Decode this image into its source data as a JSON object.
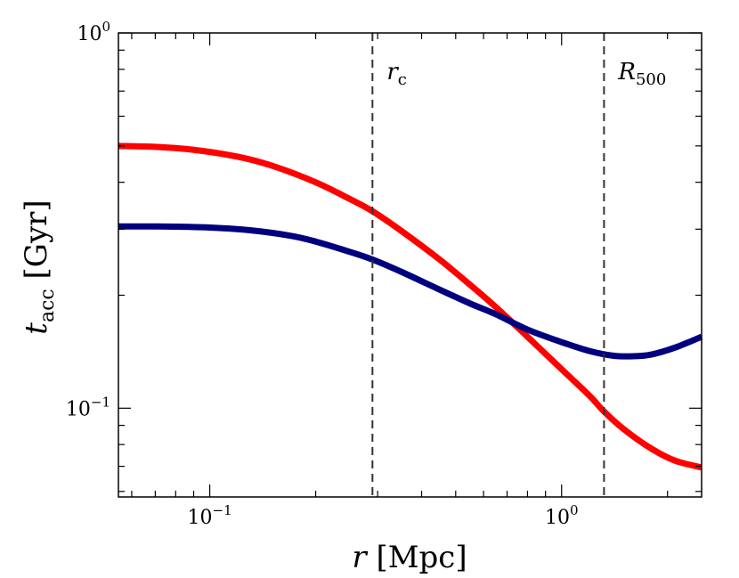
{
  "chart_data": {
    "type": "line",
    "xscale": "log",
    "yscale": "log",
    "xlim": [
      0.055,
      2.5
    ],
    "ylim": [
      0.058,
      1.0
    ],
    "xlabel": {
      "var": "r",
      "unit": " [Mpc]"
    },
    "ylabel": {
      "var": "t",
      "sub": "acc",
      "unit": " [Gyr]"
    },
    "x_ticks": [
      {
        "value": 0.1,
        "base": "10",
        "exp": "−1"
      },
      {
        "value": 1.0,
        "base": "10",
        "exp": "0"
      }
    ],
    "y_ticks": [
      {
        "value": 0.1,
        "base": "10",
        "exp": "−1"
      },
      {
        "value": 1.0,
        "base": "10",
        "exp": "0"
      }
    ],
    "vlines": [
      {
        "x": 0.29,
        "label": "r",
        "sub": "c"
      },
      {
        "x": 1.32,
        "label": "R",
        "sub": "500"
      }
    ],
    "series": [
      {
        "name": "red",
        "color": "#ff0000",
        "x": [
          0.055,
          0.07,
          0.09,
          0.12,
          0.15,
          0.2,
          0.25,
          0.29,
          0.35,
          0.45,
          0.55,
          0.65,
          0.8,
          1.0,
          1.2,
          1.32,
          1.5,
          1.8,
          2.1,
          2.5
        ],
        "y": [
          0.5,
          0.497,
          0.488,
          0.468,
          0.443,
          0.4,
          0.361,
          0.335,
          0.297,
          0.249,
          0.213,
          0.186,
          0.155,
          0.127,
          0.108,
          0.098,
          0.088,
          0.078,
          0.0725,
          0.0695
        ]
      },
      {
        "name": "navy",
        "color": "#00007f",
        "x": [
          0.055,
          0.07,
          0.1,
          0.13,
          0.17,
          0.2,
          0.25,
          0.29,
          0.35,
          0.45,
          0.55,
          0.65,
          0.8,
          1.0,
          1.2,
          1.4,
          1.6,
          1.8,
          2.1,
          2.5
        ],
        "y": [
          0.305,
          0.305,
          0.303,
          0.298,
          0.288,
          0.278,
          0.261,
          0.249,
          0.231,
          0.207,
          0.19,
          0.178,
          0.162,
          0.15,
          0.142,
          0.138,
          0.1375,
          0.139,
          0.145,
          0.155
        ]
      }
    ]
  }
}
